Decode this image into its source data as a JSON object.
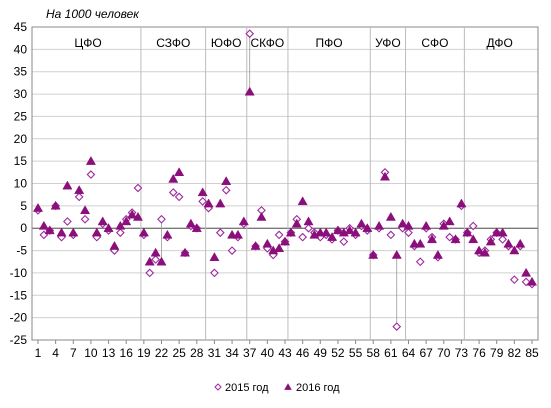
{
  "chart_data": {
    "type": "scatter",
    "title": "",
    "ylabel": "На 1000 человек",
    "ylim": [
      -25,
      45
    ],
    "yticks": [
      -25,
      -20,
      -15,
      -10,
      -5,
      0,
      5,
      10,
      15,
      20,
      25,
      30,
      35,
      40,
      45
    ],
    "xlim": [
      1,
      85
    ],
    "xticks": [
      1,
      4,
      7,
      10,
      13,
      16,
      19,
      22,
      25,
      28,
      31,
      34,
      37,
      40,
      43,
      46,
      49,
      52,
      55,
      58,
      61,
      64,
      67,
      70,
      73,
      76,
      79,
      82,
      85
    ],
    "grid": "horizontal",
    "legend_position": "bottom",
    "regions": [
      {
        "label": "ЦФО",
        "start": 1,
        "end": 18
      },
      {
        "label": "СЗФО",
        "start": 19,
        "end": 29
      },
      {
        "label": "ЮФО",
        "start": 30,
        "end": 36
      },
      {
        "label": "СКФО",
        "start": 37,
        "end": 43
      },
      {
        "label": "ПФО",
        "start": 44,
        "end": 57
      },
      {
        "label": "УФО",
        "start": 58,
        "end": 63
      },
      {
        "label": "СФО",
        "start": 64,
        "end": 73
      },
      {
        "label": "ДФО",
        "start": 74,
        "end": 85
      }
    ],
    "region_dividers": [
      18.5,
      29.5,
      36.5,
      43.5,
      57.5,
      63.5,
      73.5
    ],
    "series": [
      {
        "name": "2015 год",
        "marker": "diamond-open",
        "color": "#9e2a9e",
        "x": [
          1,
          2,
          3,
          4,
          5,
          6,
          7,
          8,
          9,
          10,
          11,
          12,
          13,
          14,
          15,
          16,
          17,
          18,
          19,
          20,
          21,
          22,
          23,
          24,
          25,
          26,
          27,
          28,
          29,
          30,
          31,
          32,
          33,
          34,
          35,
          36,
          37,
          38,
          39,
          40,
          41,
          42,
          43,
          44,
          45,
          46,
          47,
          48,
          49,
          50,
          51,
          52,
          53,
          54,
          55,
          56,
          57,
          58,
          59,
          60,
          61,
          62,
          63,
          64,
          65,
          66,
          67,
          68,
          69,
          70,
          71,
          72,
          73,
          74,
          75,
          76,
          77,
          78,
          79,
          80,
          81,
          82,
          83,
          84,
          85
        ],
        "y": [
          4,
          -1.5,
          -0.5,
          5,
          -2,
          1.5,
          -1.5,
          7,
          2,
          12,
          -2,
          1,
          -0.5,
          -5,
          -1,
          2,
          3.5,
          9,
          -1.5,
          -10,
          -7,
          2,
          -2,
          8,
          7,
          -5.5,
          0.5,
          0,
          6,
          4.5,
          -10,
          -1,
          8.5,
          -5,
          -2,
          1,
          43.5,
          -4,
          4,
          -4.5,
          -6,
          -1.5,
          -3,
          -1,
          2,
          -2,
          0,
          -1,
          -2,
          -1.5,
          -2.5,
          -0.5,
          -3,
          0,
          -1.5,
          0.5,
          -0.5,
          -6,
          0,
          12.5,
          -1.5,
          -22,
          0,
          -1,
          -4,
          -7.5,
          0,
          -2,
          -6.5,
          1,
          -2,
          -2.5,
          5,
          -1,
          0.5,
          -5.5,
          -5,
          -2.5,
          -1,
          -2.5,
          -4,
          -11.5,
          -4,
          -12,
          -12.5
        ]
      },
      {
        "name": "2016 год",
        "marker": "triangle-filled",
        "color": "#8b0f7a",
        "x": [
          1,
          2,
          3,
          4,
          5,
          6,
          7,
          8,
          9,
          10,
          11,
          12,
          13,
          14,
          15,
          16,
          17,
          18,
          19,
          20,
          21,
          22,
          23,
          24,
          25,
          26,
          27,
          28,
          29,
          30,
          31,
          32,
          33,
          34,
          35,
          36,
          37,
          38,
          39,
          40,
          41,
          42,
          43,
          44,
          45,
          46,
          47,
          48,
          49,
          50,
          51,
          52,
          53,
          54,
          55,
          56,
          57,
          58,
          59,
          60,
          61,
          62,
          63,
          64,
          65,
          66,
          67,
          68,
          69,
          70,
          71,
          72,
          73,
          74,
          75,
          76,
          77,
          78,
          79,
          80,
          81,
          82,
          83,
          84,
          85
        ],
        "y": [
          4.5,
          0.5,
          -0.5,
          5,
          -1,
          9.5,
          -1,
          8.5,
          4,
          15,
          -1,
          1.5,
          0,
          -4,
          0.5,
          1.5,
          3,
          2.5,
          -1,
          -7.5,
          -5.5,
          -7.5,
          -1.5,
          11,
          12.5,
          -5.5,
          1,
          0,
          8,
          5.5,
          -6.5,
          5.5,
          10.5,
          -1.5,
          -1.5,
          1.5,
          30.5,
          -4,
          2.5,
          -3.5,
          -5,
          -4.5,
          -3,
          -1,
          1,
          6,
          1.5,
          -1.5,
          -1,
          -1,
          -2,
          -0.5,
          -1,
          -0.5,
          -1,
          1,
          0,
          -6,
          0.5,
          11.5,
          2.5,
          -6,
          1,
          0.5,
          -3.5,
          -3.5,
          0.5,
          -2.5,
          -6,
          0.5,
          1.5,
          -2.5,
          5.5,
          -1,
          -2.5,
          -5,
          -5.5,
          -3,
          -1,
          -1,
          -3.5,
          -5,
          -3.5,
          -10,
          -12
        ]
      }
    ]
  }
}
